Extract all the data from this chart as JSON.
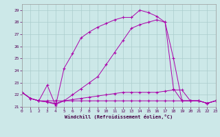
{
  "xlabel": "Windchill (Refroidissement éolien,°C)",
  "background_color": "#cce8e8",
  "grid_color": "#aacccc",
  "line_color": "#aa00aa",
  "x_values": [
    0,
    1,
    2,
    3,
    4,
    5,
    6,
    7,
    8,
    9,
    10,
    11,
    12,
    13,
    14,
    15,
    16,
    17,
    18,
    19,
    20,
    21,
    22,
    23
  ],
  "series": [
    [
      22.2,
      21.7,
      21.5,
      21.5,
      21.5,
      21.5,
      21.5,
      21.5,
      21.5,
      21.5,
      21.5,
      21.5,
      21.5,
      21.5,
      21.5,
      21.5,
      21.5,
      21.5,
      21.5,
      21.5,
      21.5,
      21.5,
      21.3,
      21.5
    ],
    [
      22.2,
      21.7,
      21.5,
      21.4,
      21.3,
      21.5,
      21.6,
      21.7,
      21.8,
      21.9,
      22.0,
      22.1,
      22.2,
      22.2,
      22.2,
      22.2,
      22.2,
      22.3,
      22.4,
      22.4,
      21.5,
      21.5,
      21.3,
      21.5
    ],
    [
      22.2,
      21.7,
      21.5,
      21.4,
      21.2,
      21.5,
      22.0,
      22.5,
      23.0,
      23.5,
      24.5,
      25.5,
      26.5,
      27.5,
      27.8,
      28.0,
      28.2,
      28.0,
      22.5,
      21.5,
      21.5,
      21.5,
      21.3,
      21.5
    ],
    [
      22.2,
      21.7,
      21.5,
      22.8,
      21.1,
      24.2,
      25.4,
      26.7,
      27.2,
      27.6,
      27.9,
      28.2,
      28.4,
      28.4,
      29.0,
      28.8,
      28.5,
      28.0,
      25.0,
      21.5,
      21.5,
      21.5,
      21.3,
      21.5
    ]
  ],
  "ylim": [
    21.0,
    29.5
  ],
  "xlim": [
    0,
    23
  ],
  "yticks": [
    21,
    22,
    23,
    24,
    25,
    26,
    27,
    28,
    29
  ],
  "xticks": [
    0,
    1,
    2,
    3,
    4,
    5,
    6,
    7,
    8,
    9,
    10,
    11,
    12,
    13,
    14,
    15,
    16,
    17,
    18,
    19,
    20,
    21,
    22,
    23
  ]
}
